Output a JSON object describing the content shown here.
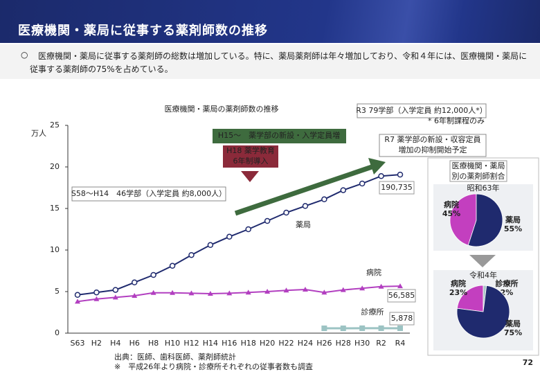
{
  "header": {
    "title": "医療機関・薬局に従事する薬剤師数の推移"
  },
  "bullet": {
    "mark": "○",
    "text": "医療機関・薬局に従事する薬剤師の総数は増加している。特に、薬局薬剤師は年々増加しており、令和４年には、医療機関・薬局に従事する薬剤師の75%を占めている。"
  },
  "chart_data": [
    {
      "type": "line",
      "title": "医療機関・薬局の薬剤師数の推移",
      "y_label": "万人",
      "categories": [
        "S63",
        "H2",
        "H4",
        "H6",
        "H8",
        "H10",
        "H12",
        "H14",
        "H16",
        "H18",
        "H20",
        "H22",
        "H24",
        "H26",
        "H28",
        "H30",
        "R2",
        "R4"
      ],
      "ylim": [
        0,
        25
      ],
      "yticks": [
        0,
        5,
        10,
        15,
        20,
        25
      ],
      "grid": false,
      "series": [
        {
          "name": "薬局",
          "color": "#1f2a6e",
          "marker": "circle",
          "values": [
            4.6,
            4.9,
            5.2,
            6.1,
            7.0,
            8.1,
            9.4,
            10.6,
            11.6,
            12.5,
            13.5,
            14.5,
            15.3,
            16.1,
            17.2,
            18.0,
            18.9,
            19.0735
          ],
          "value_labels": [
            null,
            null,
            null,
            null,
            null,
            null,
            null,
            null,
            null,
            null,
            null,
            null,
            null,
            null,
            null,
            null,
            null,
            "190,735"
          ]
        },
        {
          "name": "病院",
          "color": "#b23fc0",
          "marker": "triangle",
          "values": [
            3.8,
            4.1,
            4.3,
            4.5,
            4.85,
            4.85,
            4.8,
            4.75,
            4.8,
            4.9,
            5.0,
            5.15,
            5.25,
            4.9,
            5.2,
            5.4,
            5.6,
            5.6585
          ],
          "value_labels": [
            null,
            null,
            null,
            null,
            null,
            null,
            null,
            null,
            null,
            null,
            null,
            null,
            null,
            null,
            null,
            null,
            null,
            "56,585"
          ]
        },
        {
          "name": "診療所",
          "color": "#9cc3c3",
          "marker": "square",
          "values": [
            null,
            null,
            null,
            null,
            null,
            null,
            null,
            null,
            null,
            null,
            null,
            null,
            null,
            0.58,
            0.58,
            0.59,
            0.59,
            0.5878
          ],
          "value_labels": [
            null,
            null,
            null,
            null,
            null,
            null,
            null,
            null,
            null,
            null,
            null,
            null,
            null,
            null,
            null,
            null,
            null,
            "5,878"
          ]
        }
      ],
      "annotations": [
        [
          "H15～　薬学部の新設・入学定員増"
        ],
        [
          "H18 薬学教育",
          "6年制導入"
        ],
        [
          "S58～H14　46学部（入学定員 約8,000人）"
        ],
        [
          "R3 79学部（入学定員 約12,000人*）"
        ],
        [
          "* 6年制課程のみ"
        ],
        [
          "R7 薬学部の新設・収容定員",
          "増加の抑制開始予定"
        ]
      ],
      "source": [
        "出典：医師、歯科医師、薬剤師統計",
        "※　平成26年より病院・診療所それぞれの従事者数も調査"
      ]
    },
    {
      "type": "pie",
      "title": "昭和63年",
      "categories": [
        "病院",
        "薬局"
      ],
      "values": [
        45,
        55
      ],
      "value_labels": [
        "45%",
        "55%"
      ],
      "colors": [
        "#c33fbf",
        "#1f2a6e"
      ]
    },
    {
      "type": "pie",
      "title": "令和4年",
      "categories": [
        "病院",
        "診療所",
        "薬局"
      ],
      "values": [
        23,
        2,
        75
      ],
      "value_labels": [
        "23%",
        "2%",
        "75%"
      ],
      "colors": [
        "#c33fbf",
        "#a9c6c6",
        "#1f2a6e"
      ]
    }
  ],
  "panel": {
    "title": [
      "医療機関・薬局",
      "別の薬剤師割合"
    ]
  },
  "page_number": "72"
}
